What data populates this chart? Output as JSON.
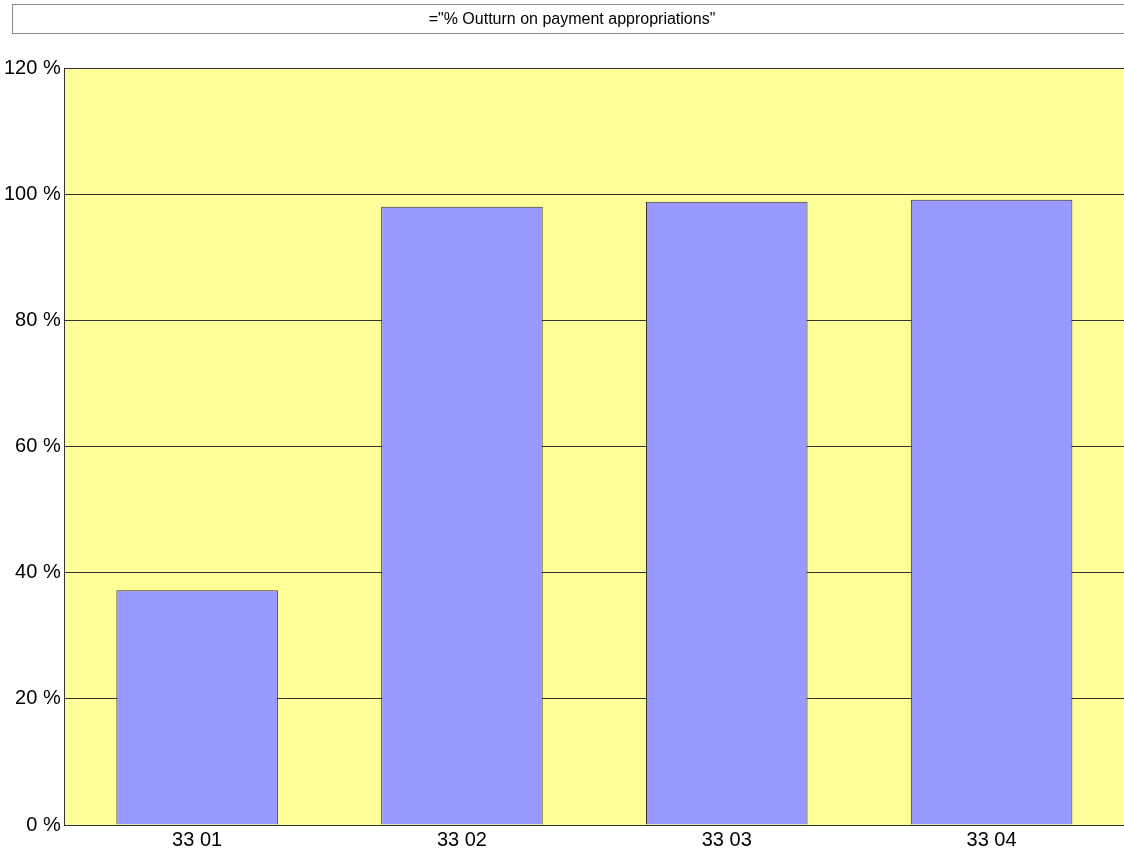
{
  "chart_data": {
    "type": "bar",
    "title": "=\"% Outturn on payment appropriations\"",
    "categories": [
      "33 01",
      "33 02",
      "33 03",
      "33 04"
    ],
    "values": [
      37.2,
      98.0,
      98.8,
      99.1
    ],
    "color": "#9999ff",
    "ylim": [
      0,
      120
    ],
    "yticks": [
      {
        "value": 0,
        "label": "0 %"
      },
      {
        "value": 20,
        "label": "20 %"
      },
      {
        "value": 40,
        "label": "40 %"
      },
      {
        "value": 60,
        "label": "60 %"
      },
      {
        "value": 80,
        "label": "80 %"
      },
      {
        "value": 100,
        "label": "100 %"
      },
      {
        "value": 120,
        "label": "120 %"
      }
    ],
    "grid": "y",
    "legend": false
  }
}
